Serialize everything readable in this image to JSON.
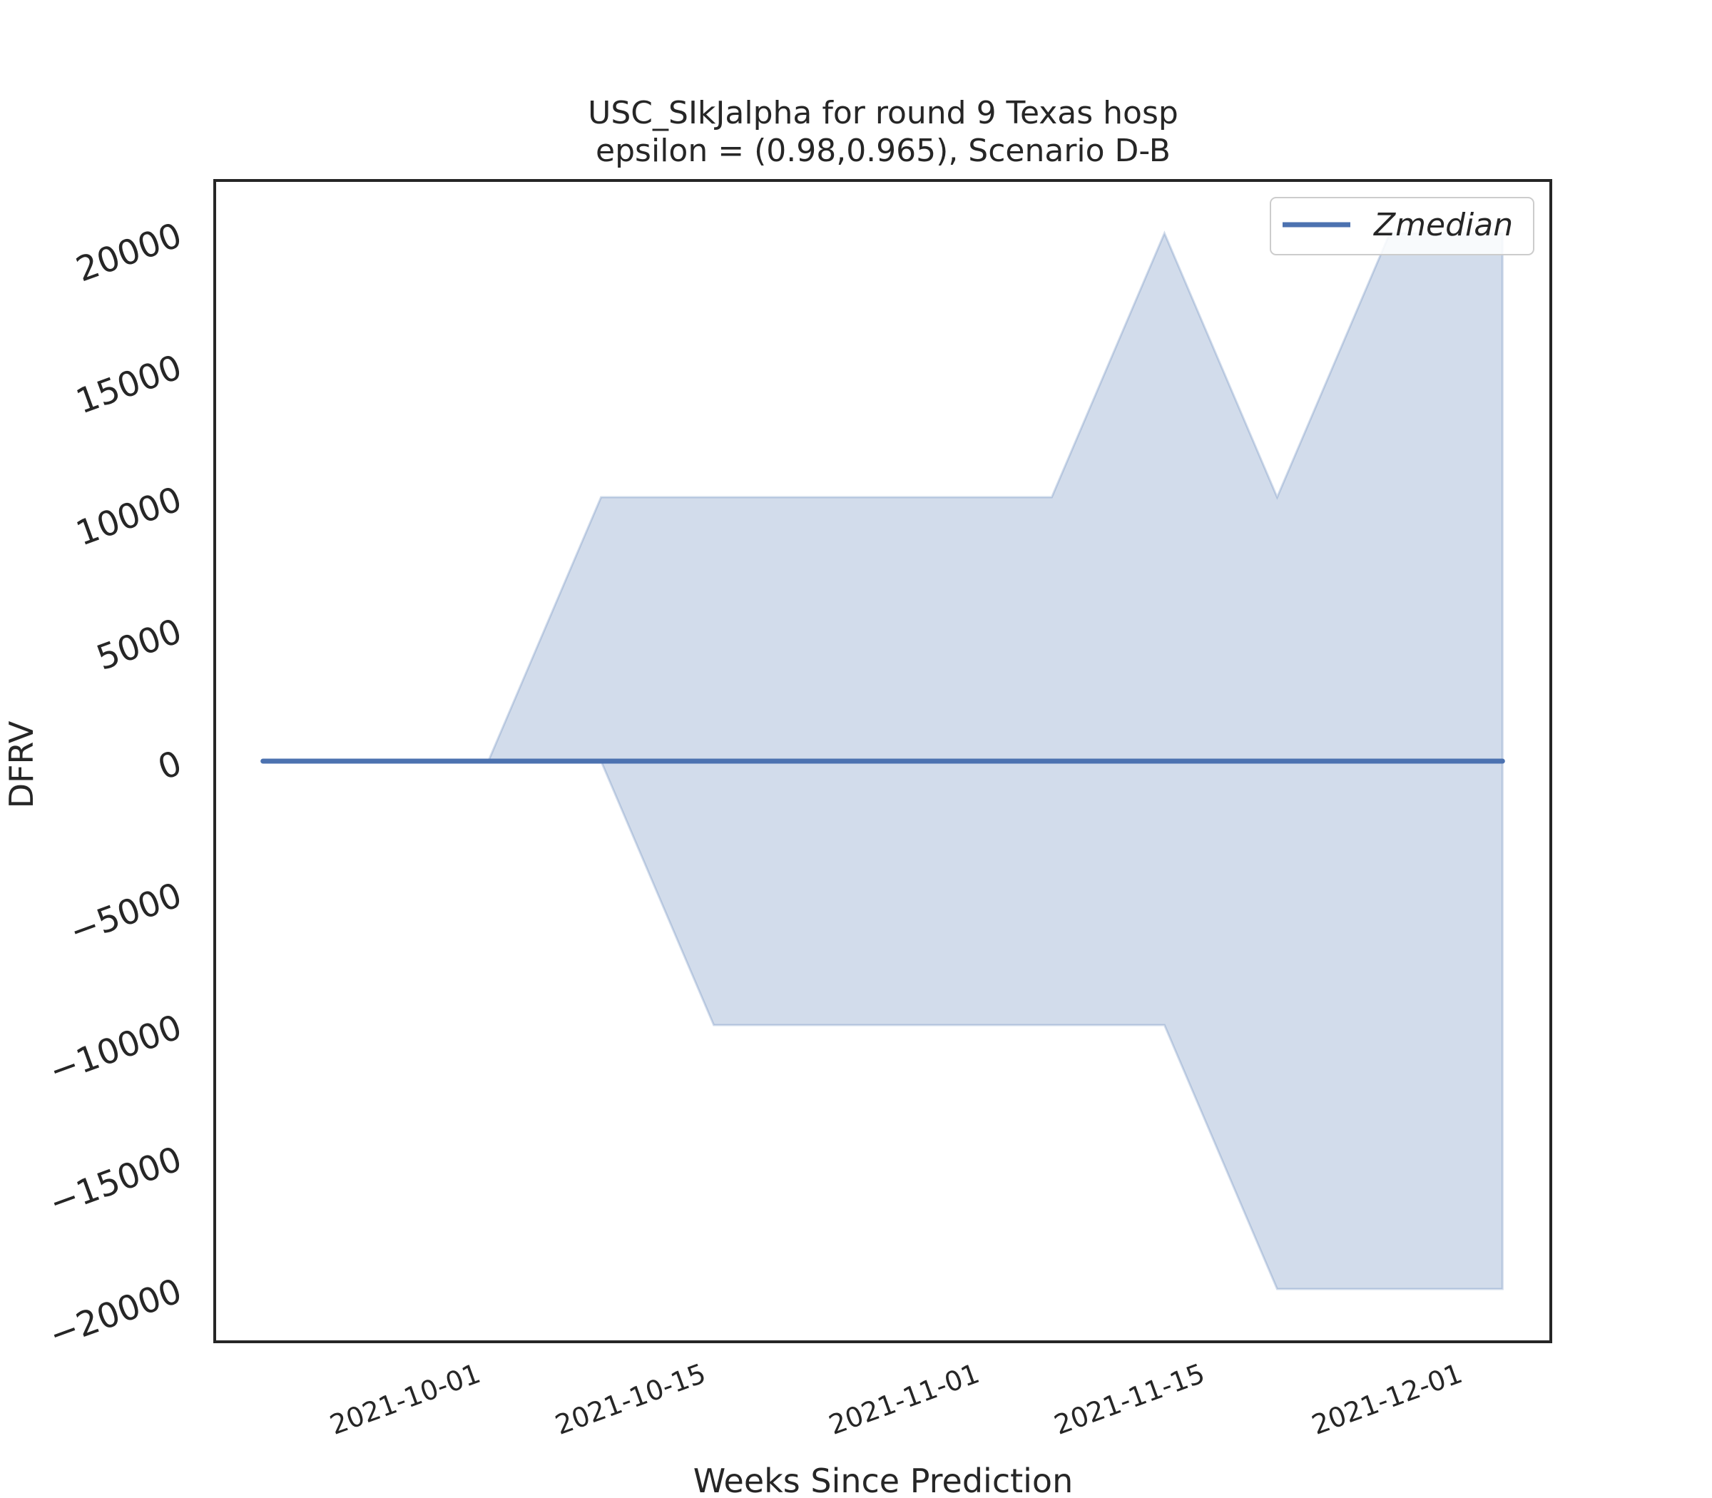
{
  "chart_data": {
    "type": "line",
    "title_lines": [
      "USC_SIkJalpha for round 9 Texas  hosp",
      "epsilon = (0.98,0.965), Scenario D-B"
    ],
    "xlabel": "Weeks Since Prediction",
    "ylabel": "DFRV",
    "x": [
      "2021-09-18",
      "2021-09-25",
      "2021-10-02",
      "2021-10-09",
      "2021-10-16",
      "2021-10-23",
      "2021-10-30",
      "2021-11-06",
      "2021-11-13",
      "2021-11-20",
      "2021-11-27",
      "2021-12-04"
    ],
    "series": [
      {
        "name": "Zmedian",
        "values": [
          0,
          0,
          0,
          0,
          0,
          0,
          0,
          0,
          0,
          0,
          0,
          0
        ],
        "band_lower": [
          0,
          0,
          0,
          0,
          -10000,
          -10000,
          -10000,
          -10000,
          -10000,
          -20000,
          -20000,
          -20000
        ],
        "band_upper": [
          0,
          0,
          0,
          10000,
          10000,
          10000,
          10000,
          10000,
          20000,
          10000,
          20000,
          20000
        ],
        "color": "#4c72b0",
        "band_color": "#4c72b0"
      }
    ],
    "xticks": [
      "2021-10-01",
      "2021-10-15",
      "2021-11-01",
      "2021-11-15",
      "2021-12-01"
    ],
    "xtick_labels": [
      "2021-10-01",
      "2021-10-15",
      "2021-11-01",
      "2021-11-15",
      "2021-12-01"
    ],
    "yticks": [
      -20000,
      -15000,
      -10000,
      -5000,
      0,
      5000,
      10000,
      15000,
      20000
    ],
    "ytick_labels": [
      "−20000",
      "−15000",
      "−10000",
      "−5000",
      "0",
      "5000",
      "10000",
      "15000",
      "20000"
    ],
    "xlim": [
      "2021-09-15",
      "2021-12-07"
    ],
    "ylim": [
      -22000,
      22000
    ],
    "grid": false,
    "legend": {
      "placement": "top-right",
      "entries": [
        "Zmedian"
      ]
    }
  }
}
